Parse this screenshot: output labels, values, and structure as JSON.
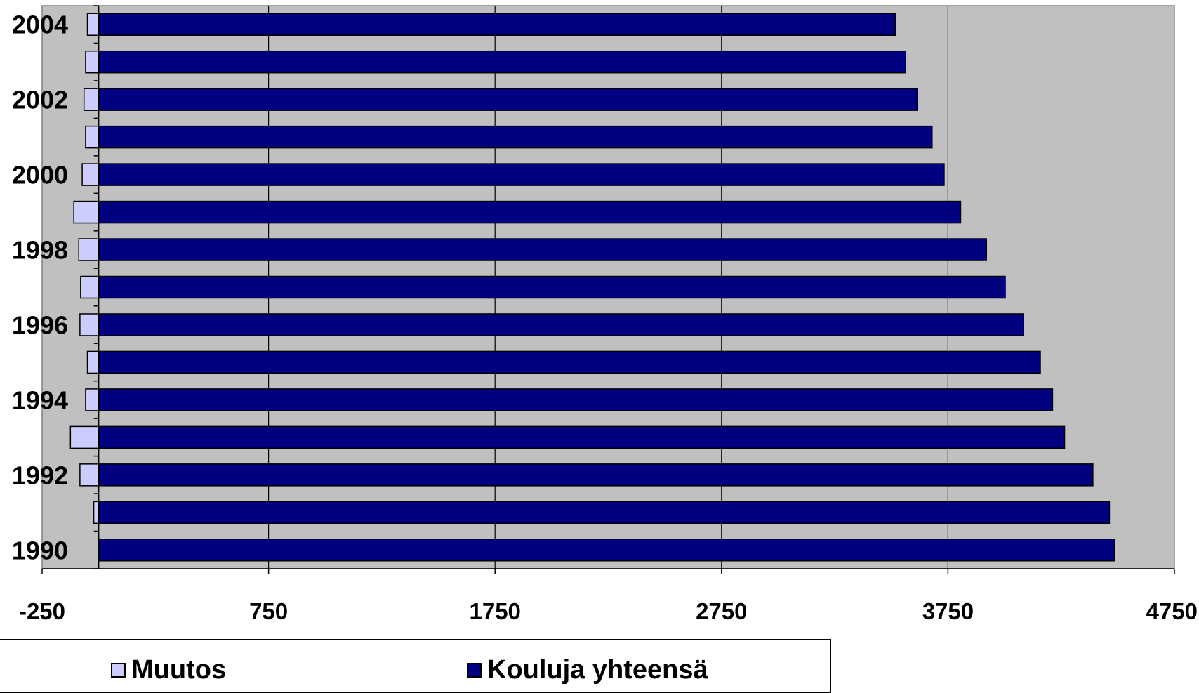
{
  "chart_data": {
    "type": "bar",
    "orientation": "horizontal",
    "stacked": false,
    "categories": [
      "1990",
      "1991",
      "1992",
      "1993",
      "1994",
      "1995",
      "1996",
      "1997",
      "1998",
      "1999",
      "2000",
      "2001",
      "2002",
      "2003",
      "2004"
    ],
    "category_labels": [
      "1990",
      "",
      "1992",
      "",
      "1994",
      "",
      "1996",
      "",
      "1998",
      "",
      "2000",
      "",
      "2002",
      "",
      "2004"
    ],
    "series": [
      {
        "name": "Muutos",
        "color": "#ccccff",
        "values": [
          0,
          -22,
          -83,
          -125,
          -58,
          -50,
          -83,
          -80,
          -88,
          -110,
          -73,
          -58,
          -65,
          -58,
          -50
        ]
      },
      {
        "name": "Kouluja yhteensä",
        "color": "#000080",
        "values": [
          4485,
          4463,
          4390,
          4265,
          4212,
          4158,
          4083,
          4003,
          3920,
          3806,
          3733,
          3680,
          3614,
          3563,
          3517
        ]
      }
    ],
    "xlim": [
      -250,
      4750
    ],
    "x_ticks": [
      "-250",
      "750",
      "1750",
      "2750",
      "3750",
      "4750"
    ],
    "gridlines": [
      750,
      1750,
      2750,
      3750
    ],
    "plot_background": "#c0c0c0",
    "legend_position": "bottom"
  }
}
